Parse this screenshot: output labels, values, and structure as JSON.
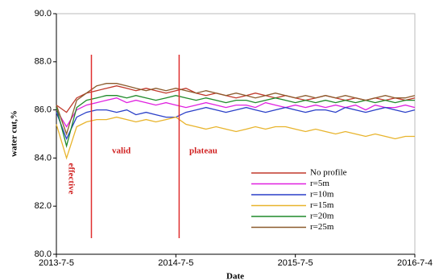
{
  "chart_data": {
    "type": "line",
    "x_label": "Date",
    "y_label": "water cut,%",
    "x": [
      "2013-7-5",
      "2013-8-5",
      "2013-9-5",
      "2013-10-5",
      "2013-11-5",
      "2013-12-5",
      "2014-1-5",
      "2014-2-5",
      "2014-3-5",
      "2014-4-5",
      "2014-5-5",
      "2014-6-5",
      "2014-7-5",
      "2014-8-5",
      "2014-9-5",
      "2014-10-5",
      "2014-11-5",
      "2014-12-5",
      "2015-1-5",
      "2015-2-5",
      "2015-3-5",
      "2015-4-5",
      "2015-5-5",
      "2015-6-5",
      "2015-7-5",
      "2015-8-5",
      "2015-9-5",
      "2015-10-5",
      "2015-11-5",
      "2015-12-5",
      "2016-1-5",
      "2016-2-5",
      "2016-3-5",
      "2016-4-5",
      "2016-5-5",
      "2016-6-5",
      "2016-7-4"
    ],
    "series": [
      {
        "name": "No profile",
        "color": "#c0392b",
        "values": [
          86.2,
          85.9,
          86.5,
          86.7,
          86.8,
          86.9,
          87.0,
          86.9,
          86.8,
          86.9,
          86.8,
          86.7,
          86.8,
          86.9,
          86.7,
          86.6,
          86.7,
          86.6,
          86.5,
          86.6,
          86.7,
          86.6,
          86.5,
          86.6,
          86.5,
          86.4,
          86.5,
          86.6,
          86.5,
          86.4,
          86.5,
          86.4,
          86.5,
          86.4,
          86.5,
          86.4,
          86.5
        ]
      },
      {
        "name": "r=5m",
        "color": "#e020e0",
        "values": [
          86.0,
          85.3,
          86.0,
          86.2,
          86.3,
          86.4,
          86.5,
          86.3,
          86.4,
          86.3,
          86.2,
          86.3,
          86.2,
          86.1,
          86.2,
          86.3,
          86.2,
          86.1,
          86.2,
          86.2,
          86.1,
          86.3,
          86.2,
          86.1,
          86.2,
          86.1,
          86.2,
          86.1,
          86.2,
          86.1,
          86.2,
          86.0,
          86.2,
          86.1,
          86.1,
          86.2,
          86.1
        ]
      },
      {
        "name": "r=10m",
        "color": "#2a3fc8",
        "values": [
          85.9,
          84.8,
          85.7,
          85.9,
          86.0,
          86.0,
          85.9,
          86.0,
          85.8,
          85.9,
          85.8,
          85.7,
          85.7,
          85.9,
          86.0,
          86.1,
          86.0,
          85.9,
          86.0,
          86.1,
          86.0,
          85.9,
          86.0,
          86.1,
          86.0,
          85.9,
          86.0,
          86.0,
          85.9,
          86.1,
          86.0,
          85.9,
          86.0,
          86.1,
          86.0,
          85.9,
          86.0
        ]
      },
      {
        "name": "r=15m",
        "color": "#e8b42c",
        "values": [
          85.4,
          84.0,
          85.3,
          85.5,
          85.6,
          85.6,
          85.7,
          85.6,
          85.5,
          85.6,
          85.5,
          85.6,
          85.7,
          85.4,
          85.3,
          85.2,
          85.3,
          85.2,
          85.1,
          85.2,
          85.3,
          85.2,
          85.3,
          85.3,
          85.2,
          85.1,
          85.2,
          85.1,
          85.0,
          85.1,
          85.0,
          84.9,
          85.0,
          84.9,
          84.8,
          84.9,
          84.9
        ]
      },
      {
        "name": "r=20m",
        "color": "#1f8a2a",
        "values": [
          86.1,
          84.5,
          86.1,
          86.4,
          86.5,
          86.6,
          86.6,
          86.5,
          86.6,
          86.5,
          86.4,
          86.5,
          86.6,
          86.5,
          86.4,
          86.5,
          86.4,
          86.3,
          86.4,
          86.4,
          86.3,
          86.4,
          86.5,
          86.4,
          86.3,
          86.4,
          86.3,
          86.4,
          86.3,
          86.4,
          86.3,
          86.4,
          86.3,
          86.4,
          86.3,
          86.4,
          86.4
        ]
      },
      {
        "name": "r=25m",
        "color": "#8b5a2b",
        "values": [
          86.2,
          85.0,
          86.4,
          86.7,
          87.0,
          87.1,
          87.1,
          87.0,
          86.9,
          86.8,
          86.9,
          86.8,
          86.9,
          86.8,
          86.7,
          86.8,
          86.7,
          86.6,
          86.7,
          86.6,
          86.5,
          86.6,
          86.7,
          86.6,
          86.5,
          86.6,
          86.5,
          86.6,
          86.5,
          86.6,
          86.5,
          86.4,
          86.5,
          86.6,
          86.5,
          86.5,
          86.6
        ]
      }
    ],
    "xlim": [
      "2013-7-5",
      "2016-7-4"
    ],
    "xticks": [
      "2013-7-5",
      "2014-7-5",
      "2015-7-5",
      "2016-7-4"
    ],
    "ylim": [
      80,
      90
    ],
    "yticks": [
      {
        "value": 80,
        "label": "80.0"
      },
      {
        "value": 82,
        "label": "82.0"
      },
      {
        "value": 84,
        "label": "84.0"
      },
      {
        "value": 86,
        "label": "86.0"
      },
      {
        "value": 88,
        "label": "88.0"
      },
      {
        "value": 90,
        "label": "90.0"
      }
    ],
    "vlines": [
      "2013-10-20",
      "2014-7-15"
    ],
    "vline_color": "#e03030",
    "annotations": [
      "effective",
      "valid",
      "plateau"
    ],
    "legend": "lower right"
  }
}
